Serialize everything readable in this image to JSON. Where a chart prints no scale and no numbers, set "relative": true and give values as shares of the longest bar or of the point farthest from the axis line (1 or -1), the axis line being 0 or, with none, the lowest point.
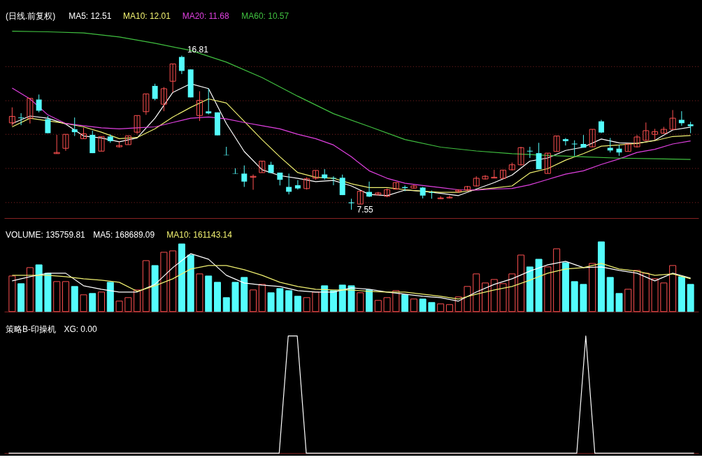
{
  "chart_data": [
    {
      "type": "candlestick",
      "title": "(日线.前复权)",
      "grid": "y",
      "tick_labels": false,
      "categories": [
        null,
        null,
        null,
        null,
        null,
        null,
        null,
        null,
        null,
        null,
        null,
        null,
        null,
        null,
        null,
        null,
        null,
        null,
        null,
        null,
        null,
        null,
        null,
        null,
        null,
        null,
        null,
        null,
        null,
        null,
        null,
        null,
        null,
        null,
        null,
        null,
        null,
        null,
        null,
        null,
        null,
        null,
        null,
        null,
        null,
        null,
        null,
        null,
        null,
        null,
        null,
        null,
        null,
        null,
        null,
        null,
        null,
        null,
        null,
        null,
        null,
        null,
        null,
        null,
        null,
        null,
        null,
        null,
        null,
        null,
        null,
        null,
        null,
        null,
        null,
        null,
        null
      ],
      "yticks": [
        {
          "value": 7.98,
          "label": null
        },
        {
          "value": 10.03,
          "label": null
        },
        {
          "value": 12.08,
          "label": null
        },
        {
          "value": 14.1,
          "label": null
        },
        {
          "value": 16.15,
          "label": null
        }
      ],
      "ohlc": [
        [
          12.77,
          13.7,
          12.6,
          13.16
        ],
        [
          13.09,
          13.35,
          12.63,
          13.05
        ],
        [
          13.05,
          14.24,
          12.73,
          14.24
        ],
        [
          14.17,
          14.47,
          13.4,
          13.5
        ],
        [
          12.99,
          13.18,
          12.15,
          12.15
        ],
        [
          10.92,
          12.05,
          10.92,
          10.99
        ],
        [
          11.24,
          12.08,
          11.09,
          12.08
        ],
        [
          12.38,
          13.09,
          11.98,
          12.21
        ],
        [
          11.82,
          12.47,
          11.82,
          12.11
        ],
        [
          12.05,
          12.3,
          10.95,
          10.95
        ],
        [
          11.07,
          11.95,
          11.07,
          11.95
        ],
        [
          11.95,
          12.08,
          11.57,
          11.67
        ],
        [
          11.33,
          11.63,
          11.28,
          11.41
        ],
        [
          11.46,
          11.99,
          11.46,
          11.99
        ],
        [
          12.21,
          13.21,
          12.11,
          13.21
        ],
        [
          13.44,
          14.51,
          13.25,
          14.51
        ],
        [
          14.99,
          15.12,
          14.12,
          14.21
        ],
        [
          13.89,
          14.92,
          13.47,
          14.82
        ],
        [
          15.27,
          16.31,
          14.6,
          16.31
        ],
        [
          16.73,
          16.81,
          15.7,
          15.89
        ],
        [
          15.98,
          15.98,
          14.3,
          14.3
        ],
        [
          13.21,
          14.67,
          12.88,
          14.12
        ],
        [
          13.46,
          14.82,
          13.28,
          13.34
        ],
        [
          13.4,
          13.4,
          12.02,
          12.02
        ],
        [
          10.84,
          11.33,
          10.82,
          10.82
        ],
        [
          9.73,
          10.04,
          9.71,
          9.71
        ],
        [
          9.72,
          10.21,
          8.92,
          9.24
        ],
        [
          9.5,
          9.67,
          8.75,
          9.56
        ],
        [
          9.78,
          10.47,
          9.78,
          10.47
        ],
        [
          10.25,
          10.43,
          9.76,
          9.76
        ],
        [
          9.78,
          9.78,
          9.01,
          9.35
        ],
        [
          8.92,
          9.72,
          8.47,
          8.63
        ],
        [
          9.02,
          9.33,
          8.76,
          8.83
        ],
        [
          8.82,
          9.5,
          8.76,
          9.41
        ],
        [
          9.44,
          9.91,
          9.35,
          9.91
        ],
        [
          9.67,
          9.99,
          9.35,
          9.44
        ],
        [
          9.46,
          9.56,
          9.02,
          9.42
        ],
        [
          9.47,
          9.66,
          8.43,
          8.43
        ],
        [
          7.99,
          8.21,
          7.55,
          7.94
        ],
        [
          7.89,
          8.66,
          7.89,
          8.66
        ],
        [
          8.62,
          9.24,
          8.31,
          8.34
        ],
        [
          8.47,
          8.62,
          8.4,
          8.56
        ],
        [
          8.36,
          8.83,
          8.3,
          8.75
        ],
        [
          8.79,
          9.2,
          8.76,
          9.18
        ],
        [
          8.91,
          9.01,
          8.66,
          8.85
        ],
        [
          8.85,
          9.05,
          8.82,
          8.98
        ],
        [
          8.88,
          8.92,
          8.23,
          8.4
        ],
        [
          8.6,
          8.7,
          8.21,
          8.56
        ],
        [
          8.21,
          8.36,
          8.21,
          8.26
        ],
        [
          8.26,
          8.4,
          8.23,
          8.3
        ],
        [
          8.65,
          8.78,
          8.56,
          8.73
        ],
        [
          8.75,
          8.98,
          8.66,
          8.94
        ],
        [
          8.98,
          9.56,
          8.94,
          9.44
        ],
        [
          9.4,
          9.63,
          9.37,
          9.56
        ],
        [
          9.45,
          9.95,
          9.45,
          9.5
        ],
        [
          9.44,
          9.95,
          9.4,
          9.93
        ],
        [
          9.95,
          10.38,
          9.91,
          10.25
        ],
        [
          10.25,
          11.33,
          10.21,
          11.28
        ],
        [
          11.09,
          11.33,
          10.66,
          11.05
        ],
        [
          10.95,
          11.57,
          9.98,
          9.98
        ],
        [
          9.73,
          10.95,
          9.73,
          10.95
        ],
        [
          11.05,
          11.98,
          11.05,
          11.98
        ],
        [
          11.79,
          11.86,
          11.41,
          11.67
        ],
        [
          11.52,
          11.72,
          10.79,
          11.48
        ],
        [
          11.5,
          12.04,
          11.28,
          11.28
        ],
        [
          11.33,
          12.38,
          11.31,
          12.38
        ],
        [
          12.86,
          12.95,
          12.15,
          12.19
        ],
        [
          11.27,
          11.86,
          10.99,
          11.11
        ],
        [
          11.22,
          11.44,
          10.79,
          10.99
        ],
        [
          11.05,
          11.5,
          11.05,
          11.5
        ],
        [
          11.33,
          12.04,
          11.28,
          11.92
        ],
        [
          11.72,
          12.79,
          11.7,
          12.3
        ],
        [
          12.08,
          12.41,
          11.76,
          12.24
        ],
        [
          12.15,
          12.53,
          12.11,
          12.38
        ],
        [
          12.38,
          13.54,
          12.34,
          13.05
        ],
        [
          12.95,
          13.47,
          12.6,
          12.75
        ],
        [
          12.68,
          12.83,
          12.15,
          12.57
        ]
      ],
      "colors": [
        "#ff5050",
        "#54fcfc",
        "#ff5050",
        "#54fcfc",
        "#54fcfc",
        "#ff5050",
        "#ff5050",
        "#54fcfc",
        "#ff5050",
        "#54fcfc",
        "#ff5050",
        "#54fcfc",
        "#ff5050",
        "#ff5050",
        "#ff5050",
        "#ff5050",
        "#54fcfc",
        "#ff5050",
        "#ff5050",
        "#54fcfc",
        "#54fcfc",
        "#ff5050",
        "#54fcfc",
        "#54fcfc",
        "#54fcfc",
        "#54fcfc",
        "#54fcfc",
        "#ff5050",
        "#ff5050",
        "#54fcfc",
        "#54fcfc",
        "#54fcfc",
        "#54fcfc",
        "#ff5050",
        "#ff5050",
        "#54fcfc",
        "#54fcfc",
        "#54fcfc",
        "#54fcfc",
        "#ff5050",
        "#54fcfc",
        "#ff5050",
        "#ff5050",
        "#ff5050",
        "#54fcfc",
        "#ff5050",
        "#54fcfc",
        "#54fcfc",
        "#ff5050",
        "#ff5050",
        "#ff5050",
        "#ff5050",
        "#ff5050",
        "#ff5050",
        "#ff5050",
        "#ff5050",
        "#ff5050",
        "#ff5050",
        "#54fcfc",
        "#54fcfc",
        "#ff5050",
        "#ff5050",
        "#54fcfc",
        "#54fcfc",
        "#54fcfc",
        "#ff5050",
        "#54fcfc",
        "#54fcfc",
        "#54fcfc",
        "#ff5050",
        "#ff5050",
        "#ff5050",
        "#ff5050",
        "#ff5050",
        "#ff5050",
        "#54fcfc",
        "#54fcfc"
      ],
      "series": [
        {
          "type": "line",
          "name": "MA5: 12.51",
          "color": "#ffffff",
          "values": [
            12.73,
            null,
            13.18,
            null,
            13.05,
            null,
            12.7,
            null,
            11.98,
            null,
            11.86,
            null,
            11.63,
            null,
            11.86,
            null,
            13.05,
            null,
            14.6,
            null,
            15.12,
            null,
            14.83,
            null,
            12.73,
            null,
            11.05,
            null,
            9.95,
            null,
            9.6,
            null,
            9.44,
            null,
            9.24,
            null,
            9.31,
            null,
            8.98,
            null,
            8.47,
            null,
            8.4,
            null,
            8.73,
            null,
            8.66,
            null,
            8.53,
            null,
            8.4,
            null,
            8.79,
            null,
            9.18,
            null,
            9.63,
            null,
            10.47,
            null,
            10.66,
            null,
            11.11,
            null,
            11.31,
            null,
            11.8,
            null,
            11.57,
            null,
            11.54,
            null,
            11.72,
            null,
            12.34,
            null,
            12.51
          ]
        },
        {
          "type": "line",
          "name": "MA10: 12.01",
          "color": "#f0f070",
          "values": [
            12.53,
            null,
            13.05,
            null,
            null,
            null,
            12.73,
            null,
            12.53,
            null,
            12.21,
            null,
            11.82,
            null,
            11.89,
            null,
            12.41,
            null,
            13.12,
            null,
            13.7,
            null,
            14.21,
            null,
            13.96,
            null,
            12.86,
            null,
            11.76,
            null,
            10.73,
            null,
            9.78,
            null,
            9.5,
            null,
            9.44,
            null,
            9.11,
            null,
            8.88,
            null,
            8.88,
            null,
            8.75,
            null,
            8.66,
            null,
            8.6,
            null,
            8.6,
            null,
            8.75,
            null,
            8.86,
            null,
            8.98,
            null,
            9.76,
            null,
            10.02,
            null,
            10.53,
            null,
            10.92,
            null,
            11.37,
            null,
            11.44,
            null,
            11.54,
            null,
            11.7,
            null,
            11.95,
            null,
            12.01
          ]
        },
        {
          "type": "line",
          "name": "MA20: 11.68",
          "color": "#e040e0",
          "values": [
            14.86,
            null,
            14.21,
            null,
            13.25,
            null,
            12.73,
            null,
            12.6,
            null,
            12.47,
            null,
            12.41,
            null,
            12.47,
            null,
            12.53,
            null,
            12.79,
            null,
            13.05,
            null,
            13.12,
            null,
            13.01,
            null,
            12.79,
            null,
            12.6,
            null,
            12.41,
            null,
            12.08,
            null,
            11.82,
            null,
            11.44,
            null,
            10.73,
            null,
            9.89,
            null,
            9.44,
            null,
            9.14,
            null,
            9.01,
            null,
            8.88,
            null,
            8.75,
            null,
            8.73,
            null,
            8.79,
            null,
            8.83,
            null,
            9.05,
            null,
            9.37,
            null,
            9.69,
            null,
            9.89,
            null,
            10.27,
            null,
            10.6,
            null,
            10.99,
            null,
            11.18,
            null,
            11.5,
            null,
            11.68
          ]
        },
        {
          "type": "line",
          "name": "MA60: 10.57",
          "color": "#40c040",
          "values": [
            18.28,
            null,
            null,
            null,
            18.24,
            null,
            null,
            null,
            18.17,
            null,
            null,
            null,
            17.93,
            null,
            null,
            null,
            17.55,
            null,
            null,
            null,
            17.12,
            null,
            null,
            null,
            16.42,
            null,
            null,
            null,
            15.49,
            null,
            null,
            null,
            14.37,
            null,
            null,
            null,
            13.32,
            null,
            null,
            null,
            12.55,
            null,
            null,
            null,
            11.77,
            null,
            null,
            null,
            11.31,
            null,
            null,
            null,
            11.08,
            null,
            null,
            null,
            10.92,
            null,
            null,
            null,
            10.81,
            null,
            null,
            null,
            10.73,
            null,
            null,
            null,
            10.65,
            null,
            null,
            null,
            10.61,
            null,
            null,
            null,
            10.57
          ]
        }
      ],
      "annotations": [
        {
          "text": "16.81",
          "y": 16.81
        },
        "7.55"
      ]
    },
    {
      "type": "line",
      "title": "VOLUME: 135759.81",
      "relative": true,
      "categories": [
        null,
        null,
        null,
        null,
        null,
        null,
        null,
        null,
        null,
        null,
        null,
        null,
        null,
        null,
        null,
        null,
        null,
        null,
        null,
        null,
        null,
        null,
        null,
        null,
        null,
        null,
        null,
        null,
        null,
        null,
        null,
        null,
        null,
        null,
        null,
        null,
        null,
        null,
        null,
        null,
        null,
        null,
        null,
        null,
        null,
        null,
        null,
        null,
        null,
        null,
        null,
        null,
        null,
        null,
        null,
        null,
        null,
        null,
        null,
        null,
        null,
        null,
        null,
        null,
        null,
        null,
        null,
        null,
        null,
        null,
        null,
        null,
        null,
        null,
        null,
        null,
        null
      ],
      "series": [
        {
          "type": "bar",
          "values": [
            0.51,
            0.4,
            0.63,
            0.67,
            0.55,
            0.43,
            0.43,
            0.36,
            0.24,
            0.26,
            0.28,
            0.42,
            0.15,
            0.2,
            0.31,
            0.73,
            0.66,
            0.85,
            0.87,
            0.97,
            0.81,
            0.54,
            0.51,
            0.42,
            0.2,
            0.42,
            0.49,
            0.31,
            0.39,
            0.27,
            0.33,
            0.3,
            0.22,
            0.2,
            0.28,
            0.37,
            0.3,
            0.38,
            0.37,
            0.27,
            0.31,
            0.16,
            0.2,
            0.3,
            0.24,
            0.18,
            0.18,
            0.13,
            0.11,
            0.1,
            0.21,
            0.36,
            0.54,
            0.41,
            0.46,
            0.4,
            0.54,
            0.81,
            0.64,
            0.75,
            0.64,
            0.9,
            0.7,
            0.43,
            0.39,
            0.69,
            1,
            0.49,
            0.26,
            0.32,
            0.59,
            0.55,
            0.47,
            0.41,
            0.66,
            0.5,
            0.39
          ],
          "colors": [
            "#ff5050",
            "#54fcfc",
            "#ff5050",
            "#54fcfc",
            "#54fcfc",
            "#ff5050",
            "#ff5050",
            "#54fcfc",
            "#ff5050",
            "#54fcfc",
            "#ff5050",
            "#54fcfc",
            "#ff5050",
            "#ff5050",
            "#ff5050",
            "#ff5050",
            "#54fcfc",
            "#ff5050",
            "#ff5050",
            "#54fcfc",
            "#54fcfc",
            "#ff5050",
            "#54fcfc",
            "#54fcfc",
            "#54fcfc",
            "#54fcfc",
            "#54fcfc",
            "#ff5050",
            "#ff5050",
            "#54fcfc",
            "#54fcfc",
            "#54fcfc",
            "#54fcfc",
            "#ff5050",
            "#ff5050",
            "#54fcfc",
            "#54fcfc",
            "#54fcfc",
            "#54fcfc",
            "#ff5050",
            "#54fcfc",
            "#ff5050",
            "#ff5050",
            "#ff5050",
            "#54fcfc",
            "#ff5050",
            "#54fcfc",
            "#54fcfc",
            "#ff5050",
            "#ff5050",
            "#ff5050",
            "#ff5050",
            "#ff5050",
            "#ff5050",
            "#ff5050",
            "#ff5050",
            "#ff5050",
            "#ff5050",
            "#54fcfc",
            "#54fcfc",
            "#ff5050",
            "#ff5050",
            "#54fcfc",
            "#54fcfc",
            "#54fcfc",
            "#ff5050",
            "#54fcfc",
            "#54fcfc",
            "#54fcfc",
            "#ff5050",
            "#ff5050",
            "#ff5050",
            "#ff5050",
            "#ff5050",
            "#ff5050",
            "#54fcfc",
            "#54fcfc"
          ]
        },
        {
          "type": "line",
          "name": "MA5: 168689.09",
          "color": "#ffffff",
          "values": [
            0.44,
            null,
            0.5,
            null,
            0.55,
            null,
            0.55,
            null,
            0.37,
            null,
            0.32,
            null,
            0.28,
            null,
            0.28,
            null,
            0.39,
            null,
            0.63,
            null,
            0.83,
            null,
            0.75,
            null,
            0.52,
            null,
            0.41,
            null,
            0.38,
            null,
            0.36,
            null,
            0.3,
            null,
            0.28,
            null,
            0.28,
            null,
            0.34,
            null,
            0.32,
            null,
            0.28,
            null,
            0.25,
            null,
            0.22,
            null,
            0.2,
            null,
            0.15,
            null,
            0.28,
            null,
            0.39,
            null,
            0.47,
            null,
            0.58,
            null,
            0.67,
            null,
            0.72,
            null,
            0.63,
            null,
            0.64,
            null,
            0.59,
            null,
            0.55,
            null,
            0.44,
            null,
            0.55,
            null,
            0.48
          ]
        },
        {
          "type": "line",
          "name": "MA10: 161143.14",
          "color": "#f0f070",
          "values": [
            0.52,
            null,
            0.52,
            null,
            0.52,
            null,
            0.5,
            null,
            0.47,
            null,
            0.45,
            null,
            0.42,
            null,
            0.29,
            null,
            0.37,
            null,
            0.47,
            null,
            0.61,
            null,
            0.66,
            null,
            0.66,
            null,
            0.6,
            null,
            0.52,
            null,
            0.42,
            null,
            0.36,
            null,
            0.32,
            null,
            0.31,
            null,
            0.31,
            null,
            0.29,
            null,
            0.28,
            null,
            0.28,
            null,
            0.25,
            null,
            0.22,
            null,
            0.18,
            null,
            0.25,
            null,
            0.31,
            null,
            0.36,
            null,
            0.45,
            null,
            0.55,
            null,
            0.61,
            null,
            0.63,
            null,
            0.69,
            null,
            0.61,
            null,
            0.58,
            null,
            0.52,
            null,
            0.54,
            null,
            0.47
          ]
        }
      ]
    },
    {
      "type": "line",
      "title": "策略B-印操机",
      "relative": true,
      "categories": [
        null,
        null,
        null,
        null,
        null,
        null,
        null,
        null,
        null,
        null,
        null,
        null,
        null,
        null,
        null,
        null,
        null,
        null,
        null,
        null,
        null,
        null,
        null,
        null,
        null,
        null,
        null,
        null,
        null,
        null,
        null,
        null,
        null,
        null,
        null,
        null,
        null,
        null,
        null,
        null,
        null,
        null,
        null,
        null,
        null,
        null,
        null,
        null,
        null,
        null,
        null,
        null,
        null,
        null,
        null,
        null,
        null,
        null,
        null,
        null,
        null,
        null,
        null,
        null,
        null,
        null,
        null,
        null,
        null,
        null,
        null,
        null,
        null,
        null,
        null,
        null,
        null
      ],
      "series": [
        {
          "name": "XG: 0.00",
          "color": "#ffffff",
          "values": [
            0,
            0,
            0,
            0,
            0,
            0,
            0,
            0,
            0,
            0,
            0,
            0,
            0,
            0,
            0,
            0,
            0,
            0,
            0,
            0,
            0,
            0,
            0,
            0,
            0,
            0,
            0,
            0,
            0,
            0,
            0,
            1,
            1,
            0,
            0,
            0,
            0,
            0,
            0,
            0,
            0,
            0,
            0,
            0,
            0,
            0,
            0,
            0,
            0,
            0,
            0,
            0,
            0,
            0,
            0,
            0,
            0,
            0,
            0,
            0,
            0,
            0,
            0,
            0,
            1,
            0,
            0,
            0,
            0,
            0,
            0,
            0,
            0,
            0,
            0,
            0,
            0
          ]
        }
      ]
    }
  ]
}
